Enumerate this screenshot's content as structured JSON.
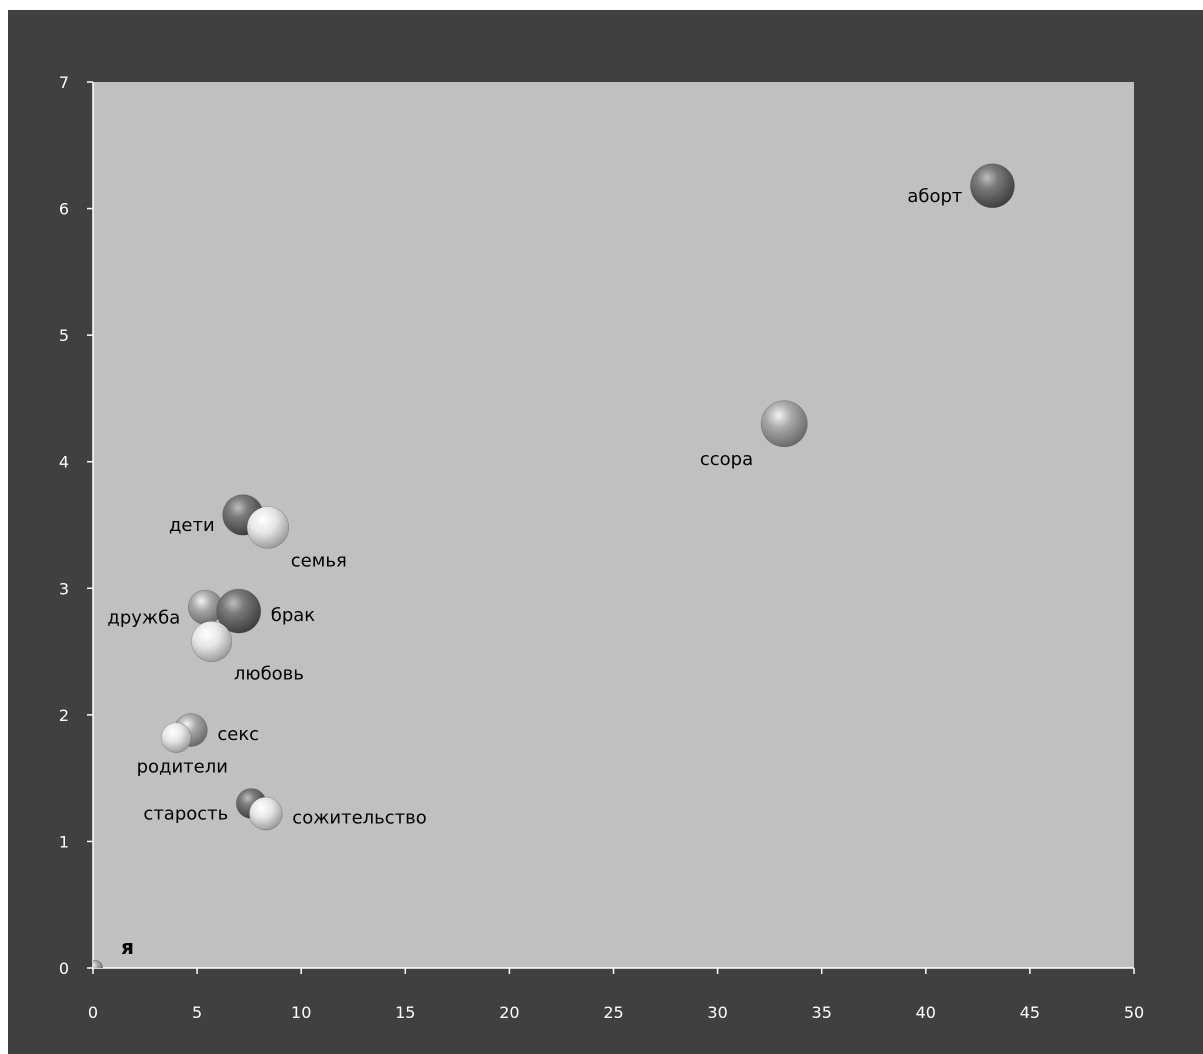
{
  "chart_data": {
    "type": "scatter",
    "title": "",
    "xlabel": "",
    "ylabel": "",
    "xlim": [
      0,
      50
    ],
    "ylim": [
      0,
      7
    ],
    "x_ticks": [
      "0",
      "5",
      "10",
      "15",
      "20",
      "25",
      "30",
      "35",
      "40",
      "45",
      "50"
    ],
    "y_ticks": [
      "0",
      "1",
      "2",
      "3",
      "4",
      "5",
      "6",
      "7"
    ],
    "grid": false,
    "legend": "none",
    "colors": {
      "frame": "#404040",
      "plot_area": "#c0c0c0",
      "axis": "#ffffff",
      "dark_bubble": "#5a5a5a",
      "mid_bubble": "#9a9a9a",
      "light_bubble": "#e4e4e4"
    },
    "points": [
      {
        "label": "аборт",
        "x": 43.2,
        "y": 6.18,
        "size": 1.0,
        "shade": "dark",
        "label_pos": "left"
      },
      {
        "label": "ссора",
        "x": 33.2,
        "y": 4.3,
        "size": 1.05,
        "shade": "mid",
        "label_pos": "below-left"
      },
      {
        "label": "дети",
        "x": 7.2,
        "y": 3.58,
        "size": 0.92,
        "shade": "dark",
        "label_pos": "left"
      },
      {
        "label": "семья",
        "x": 8.4,
        "y": 3.48,
        "size": 0.95,
        "shade": "light",
        "label_pos": "below-right"
      },
      {
        "label": "дружба",
        "x": 5.4,
        "y": 2.85,
        "size": 0.78,
        "shade": "mid",
        "label_pos": "left"
      },
      {
        "label": "брак",
        "x": 7.0,
        "y": 2.82,
        "size": 1.0,
        "shade": "dark",
        "label_pos": "right"
      },
      {
        "label": "любовь",
        "x": 5.7,
        "y": 2.58,
        "size": 0.92,
        "shade": "light",
        "label_pos": "below-right"
      },
      {
        "label": "секс",
        "x": 4.7,
        "y": 1.88,
        "size": 0.75,
        "shade": "mid",
        "label_pos": "right"
      },
      {
        "label": "родители",
        "x": 4.0,
        "y": 1.82,
        "size": 0.68,
        "shade": "light",
        "label_pos": "below-left"
      },
      {
        "label": "старость",
        "x": 7.6,
        "y": 1.3,
        "size": 0.68,
        "shade": "dark",
        "label_pos": "left"
      },
      {
        "label": "сожительство",
        "x": 8.3,
        "y": 1.22,
        "size": 0.75,
        "shade": "light",
        "label_pos": "right"
      },
      {
        "label": "я",
        "x": 0.1,
        "y": 0.0,
        "size": 0.35,
        "shade": "mid",
        "label_pos": "above-right"
      }
    ]
  }
}
